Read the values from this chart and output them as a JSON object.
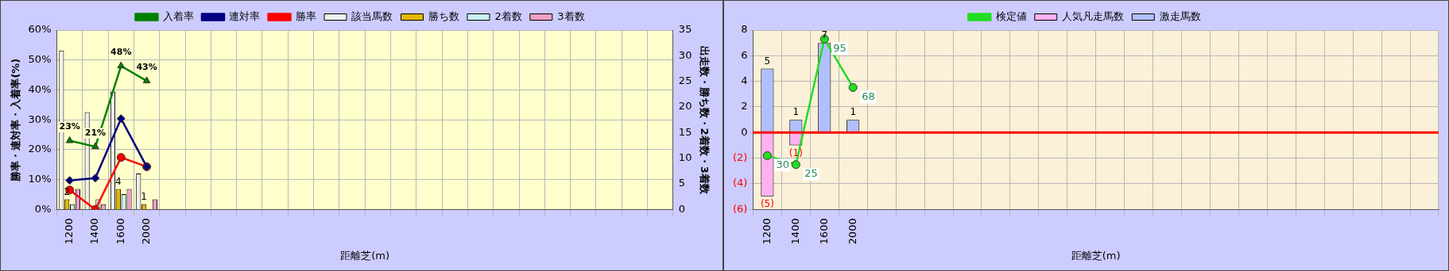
{
  "chart_data": [
    {
      "type": "bar",
      "xlabel": "距離芝(m)",
      "ylabel": "勝率・連対率・入着率(%)",
      "y2label": "出走数・勝ち数・2着数・3着数",
      "categories": [
        "1200",
        "1400",
        "1600",
        "2000",
        null,
        null,
        null,
        null,
        null,
        null,
        null,
        null,
        null,
        null,
        null,
        null,
        null,
        null,
        null,
        null,
        null,
        null,
        null,
        null
      ],
      "series": [
        {
          "name": "該当馬数",
          "color": "#f0f0f0",
          "axis": "y2",
          "values": [
            31,
            19,
            23,
            7,
            null,
            null,
            null,
            null,
            null,
            null,
            null,
            null,
            null,
            null,
            null,
            null,
            null,
            null,
            null,
            null,
            null,
            null,
            null,
            null
          ]
        },
        {
          "name": "勝ち数",
          "color": "#e6b800",
          "axis": "y2",
          "values": [
            2,
            0,
            4,
            1,
            null,
            null,
            null,
            null,
            null,
            null,
            null,
            null,
            null,
            null,
            null,
            null,
            null,
            null,
            null,
            null,
            null,
            null,
            null,
            null
          ],
          "value_labels": [
            "2",
            null,
            "4",
            "1",
            null,
            null,
            null,
            null,
            null,
            null,
            null,
            null,
            null,
            null,
            null,
            null,
            null,
            null,
            null,
            null,
            null,
            null,
            null,
            null
          ]
        },
        {
          "name": "2着数",
          "color": "#c8f0f0",
          "axis": "y2",
          "values": [
            1,
            2,
            3,
            0,
            null,
            null,
            null,
            null,
            null,
            null,
            null,
            null,
            null,
            null,
            null,
            null,
            null,
            null,
            null,
            null,
            null,
            null,
            null,
            null
          ]
        },
        {
          "name": "3着数",
          "color": "#f0a0c8",
          "axis": "y2",
          "values": [
            4,
            1,
            4,
            2,
            null,
            null,
            null,
            null,
            null,
            null,
            null,
            null,
            null,
            null,
            null,
            null,
            null,
            null,
            null,
            null,
            null,
            null,
            null,
            null
          ]
        },
        {
          "name": "入着率",
          "type": "line",
          "marker": "triangle",
          "color": "#008000",
          "values": [
            23,
            21,
            48,
            43,
            null,
            null,
            null,
            null,
            null,
            null,
            null,
            null,
            null,
            null,
            null,
            null,
            null,
            null,
            null,
            null,
            null,
            null,
            null,
            null
          ],
          "value_labels": [
            "23%",
            "21%",
            "48%",
            "43%",
            null,
            null,
            null,
            null,
            null,
            null,
            null,
            null,
            null,
            null,
            null,
            null,
            null,
            null,
            null,
            null,
            null,
            null,
            null,
            null
          ]
        },
        {
          "name": "連対率",
          "type": "line",
          "marker": "diamond",
          "color": "#000080",
          "values": [
            9.7,
            10.5,
            30.4,
            14.3,
            null,
            null,
            null,
            null,
            null,
            null,
            null,
            null,
            null,
            null,
            null,
            null,
            null,
            null,
            null,
            null,
            null,
            null,
            null,
            null
          ]
        },
        {
          "name": "勝率",
          "type": "line",
          "marker": "circle",
          "color": "#ff0000",
          "values": [
            6.5,
            0,
            17.4,
            14.3,
            null,
            null,
            null,
            null,
            null,
            null,
            null,
            null,
            null,
            null,
            null,
            null,
            null,
            null,
            null,
            null,
            null,
            null,
            null,
            null
          ]
        }
      ],
      "ylim": [
        0,
        60
      ],
      "yticks": [
        {
          "value": 0,
          "label": "0%"
        },
        {
          "value": 10,
          "label": "10%"
        },
        {
          "value": 20,
          "label": "20%"
        },
        {
          "value": 30,
          "label": "30%"
        },
        {
          "value": 40,
          "label": "40%"
        },
        {
          "value": 50,
          "label": "50%"
        },
        {
          "value": 60,
          "label": "60%"
        }
      ],
      "y2lim": [
        0,
        35
      ],
      "y2ticks": [
        0,
        5,
        10,
        15,
        20,
        25,
        30,
        35
      ],
      "grid": true,
      "legend": "top"
    },
    {
      "type": "bar",
      "xlabel": "距離芝(m)",
      "stacked": true,
      "categories": [
        "1200",
        "1400",
        "1600",
        "2000",
        null,
        null,
        null,
        null,
        null,
        null,
        null,
        null,
        null,
        null,
        null,
        null,
        null,
        null,
        null,
        null,
        null,
        null,
        null,
        null
      ],
      "series": [
        {
          "name": "人気凡走馬数",
          "color": "#ffb0f0",
          "values": [
            -5,
            -1,
            null,
            null,
            null,
            null,
            null,
            null,
            null,
            null,
            null,
            null,
            null,
            null,
            null,
            null,
            null,
            null,
            null,
            null,
            null,
            null,
            null,
            null
          ],
          "value_labels": [
            "(5)",
            "(1)",
            null,
            null,
            null,
            null,
            null,
            null,
            null,
            null,
            null,
            null,
            null,
            null,
            null,
            null,
            null,
            null,
            null,
            null,
            null,
            null,
            null,
            null
          ]
        },
        {
          "name": "激走馬数",
          "color": "#b0c0ff",
          "values": [
            5,
            1,
            7,
            1,
            null,
            null,
            null,
            null,
            null,
            null,
            null,
            null,
            null,
            null,
            null,
            null,
            null,
            null,
            null,
            null,
            null,
            null,
            null,
            null
          ],
          "value_labels": [
            "5",
            "1",
            "7",
            "1",
            null,
            null,
            null,
            null,
            null,
            null,
            null,
            null,
            null,
            null,
            null,
            null,
            null,
            null,
            null,
            null,
            null,
            null,
            null,
            null
          ]
        },
        {
          "name": "検定値",
          "type": "line",
          "marker": "circle",
          "color": "#22dd22",
          "axis": "y2",
          "values": [
            30,
            25,
            95,
            68,
            null,
            null,
            null,
            null,
            null,
            null,
            null,
            null,
            null,
            null,
            null,
            null,
            null,
            null,
            null,
            null,
            null,
            null,
            null,
            null
          ],
          "value_labels": [
            "30",
            "25",
            "95",
            "68",
            null,
            null,
            null,
            null,
            null,
            null,
            null,
            null,
            null,
            null,
            null,
            null,
            null,
            null,
            null,
            null,
            null,
            null,
            null,
            null
          ]
        }
      ],
      "ylim": [
        -6,
        8
      ],
      "yticks": [
        {
          "value": -6,
          "label": "(6)"
        },
        {
          "value": -4,
          "label": "(4)"
        },
        {
          "value": -2,
          "label": "(2)"
        },
        0,
        2,
        4,
        6,
        8
      ],
      "y2lim": [
        0,
        100
      ],
      "tick_labels": "xy",
      "ref_lines": [
        {
          "axis": "y",
          "value": 0,
          "color": "#ff0000"
        }
      ],
      "grid": true,
      "legend": "top"
    }
  ]
}
